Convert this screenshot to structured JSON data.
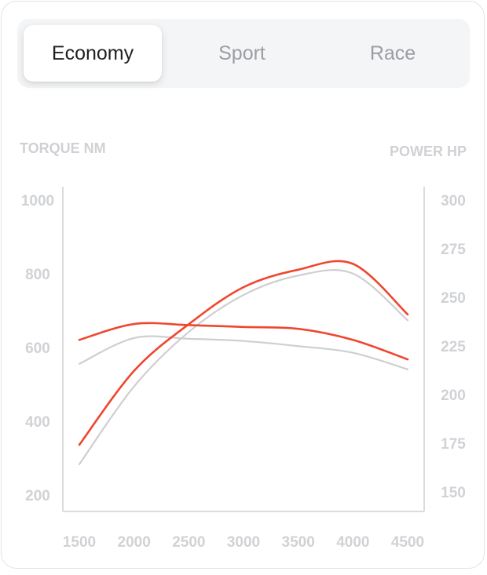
{
  "tabs": [
    {
      "label": "Economy",
      "active": true
    },
    {
      "label": "Sport",
      "active": false
    },
    {
      "label": "Race",
      "active": false
    }
  ],
  "chart_data": {
    "type": "line",
    "left_axis_title": "TORQUE NM",
    "right_axis_title": "POWER HP",
    "x_ticks": [
      1500,
      2000,
      2500,
      3000,
      3500,
      4000,
      4500
    ],
    "xlim": [
      1500,
      4500
    ],
    "left_ticks": [
      1000,
      800,
      600,
      400,
      200
    ],
    "left_ylim": [
      200,
      1000
    ],
    "right_ticks": [
      300,
      275,
      250,
      225,
      200,
      175,
      150
    ],
    "right_ylim": [
      150,
      300
    ],
    "grid": false,
    "colors": {
      "active": "#f0462e",
      "inactive": "#cfcfd1",
      "axis": "#dcdcdf"
    },
    "series": [
      {
        "axis": "left",
        "active": false,
        "x": [
          1500,
          2000,
          2500,
          3000,
          3500,
          4000,
          4500
        ],
        "values": [
          560,
          630,
          628,
          622,
          608,
          590,
          545
        ]
      },
      {
        "axis": "left",
        "active": true,
        "x": [
          1500,
          2000,
          2500,
          3000,
          3500,
          4000,
          4500
        ],
        "values": [
          625,
          668,
          665,
          660,
          655,
          625,
          572
        ]
      },
      {
        "axis": "right",
        "active": false,
        "x": [
          1500,
          2000,
          2500,
          3000,
          3500,
          4000,
          4500
        ],
        "values": [
          165,
          205,
          233,
          252,
          262,
          263,
          239
        ]
      },
      {
        "axis": "right",
        "active": true,
        "x": [
          1500,
          2000,
          2500,
          3000,
          3500,
          4000,
          4500
        ],
        "values": [
          175,
          213,
          237,
          256,
          265,
          268,
          242
        ]
      }
    ]
  }
}
